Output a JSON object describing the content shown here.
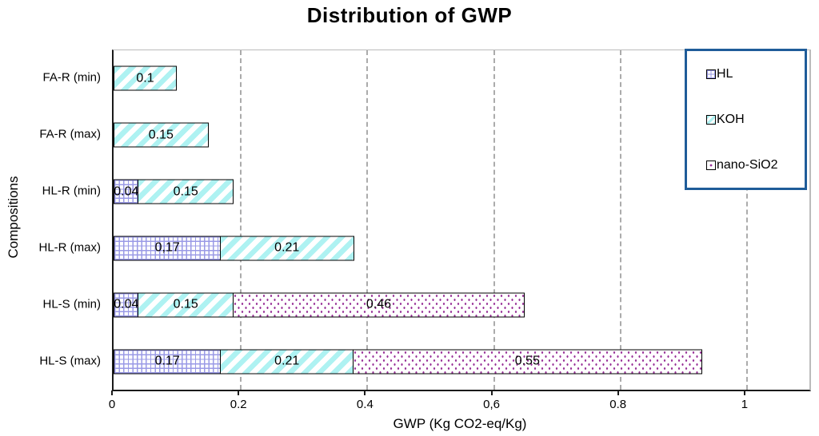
{
  "title": "Distribution of GWP",
  "colors": {
    "hl_pattern": "#9a9ae6",
    "koh_pattern": "#aef2f2",
    "nano_pattern": "#993399",
    "legend_border": "#1f5c99",
    "grid_line": "#ababab",
    "axis_line": "#1a1a1a",
    "plot_border": "#bbbbbb",
    "bar_border": "#000000"
  },
  "chart_data": {
    "type": "bar",
    "orientation": "horizontal",
    "stacked": true,
    "title": "Distribution of GWP",
    "xlabel": "GWP (Kg CO2-eq/Kg)",
    "ylabel": "Compositions",
    "xlim": [
      0,
      1.1
    ],
    "grid": "vertical dashed gridlines at x tick positions",
    "legend_position": "top-right",
    "x_ticks": [
      {
        "value": 0,
        "label": "0"
      },
      {
        "value": 0.2,
        "label": "0.2"
      },
      {
        "value": 0.4,
        "label": "0.4"
      },
      {
        "value": 0.6,
        "label": "0,6"
      },
      {
        "value": 0.8,
        "label": "0.8"
      },
      {
        "value": 1,
        "label": "1"
      }
    ],
    "categories": [
      "FA-R (min)",
      "FA-R (max)",
      "HL-R (min)",
      "HL-R (max)",
      "HL-S (min)",
      "HL-S (max)"
    ],
    "series": [
      {
        "name": "HL",
        "pattern": "grid",
        "values": [
          null,
          null,
          0.04,
          0.17,
          0.04,
          0.17
        ]
      },
      {
        "name": "KOH",
        "pattern": "stripes",
        "values": [
          0.1,
          0.15,
          0.15,
          0.21,
          0.15,
          0.21
        ]
      },
      {
        "name": "nano-SiO2",
        "pattern": "dots",
        "values": [
          null,
          null,
          null,
          null,
          0.46,
          0.55
        ]
      }
    ],
    "bar_labels": [
      [
        "0.1"
      ],
      [
        "0.15"
      ],
      [
        "0.04",
        "0.15"
      ],
      [
        "0,17",
        "0.21"
      ],
      [
        "0.04",
        "0.15",
        "0.46"
      ],
      [
        "0.17",
        "0.21",
        "0.55"
      ]
    ],
    "legend_entries": [
      "HL",
      "KOH",
      "nano-SiO2"
    ]
  }
}
